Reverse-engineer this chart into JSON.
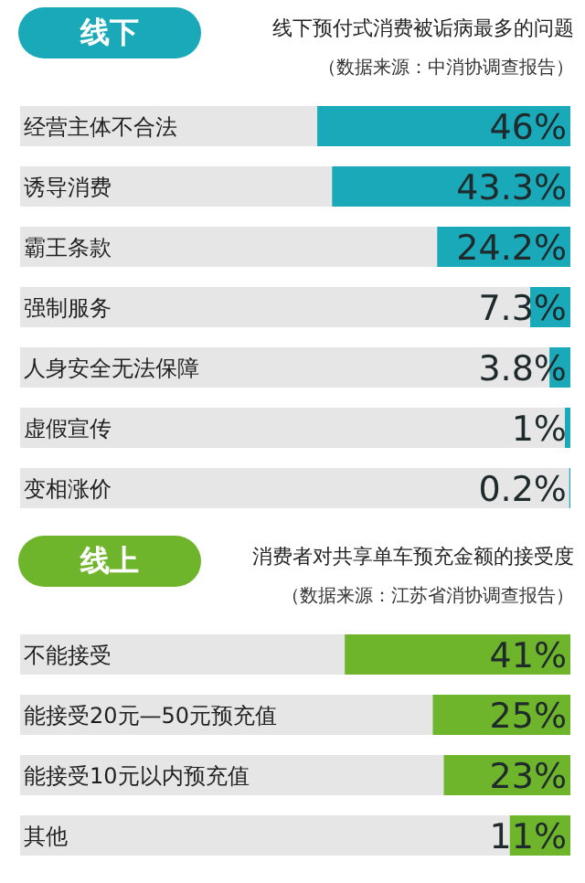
{
  "chart_data": [
    {
      "type": "bar",
      "orientation": "horizontal",
      "title": "线下",
      "subtitle": "线下预付式消费被诟病最多的问题",
      "annotations": [
        "（数据来源：中消协调查报告）"
      ],
      "categories": [
        "经营主体不合法",
        "诱导消费",
        "霸王条款",
        "强制服务",
        "人身安全无法保障",
        "虚假宣传",
        "变相涨价"
      ],
      "values": [
        46,
        43.3,
        24.2,
        7.3,
        3.8,
        1,
        0.2
      ],
      "value_labels": [
        "46%",
        "43.3%",
        "24.2%",
        "7.3%",
        "3.8%",
        "1%",
        "0.2%"
      ],
      "color": "#1aa9b8",
      "xlim": [
        100,
        0
      ],
      "tick_labels": "y"
    },
    {
      "type": "bar",
      "orientation": "horizontal",
      "title": "线上",
      "subtitle": "消费者对共享单车预充金额的接受度",
      "annotations": [
        "（数据来源：江苏省消协调查报告）"
      ],
      "categories": [
        "不能接受",
        "能接受20元—50元预充值",
        "能接受10元以内预充值",
        "其他"
      ],
      "values": [
        41,
        25,
        23,
        11
      ],
      "value_labels": [
        "41%",
        "25%",
        "23%",
        "11%"
      ],
      "color": "#6fb52c",
      "xlim": [
        100,
        0
      ],
      "tick_labels": "y"
    }
  ]
}
